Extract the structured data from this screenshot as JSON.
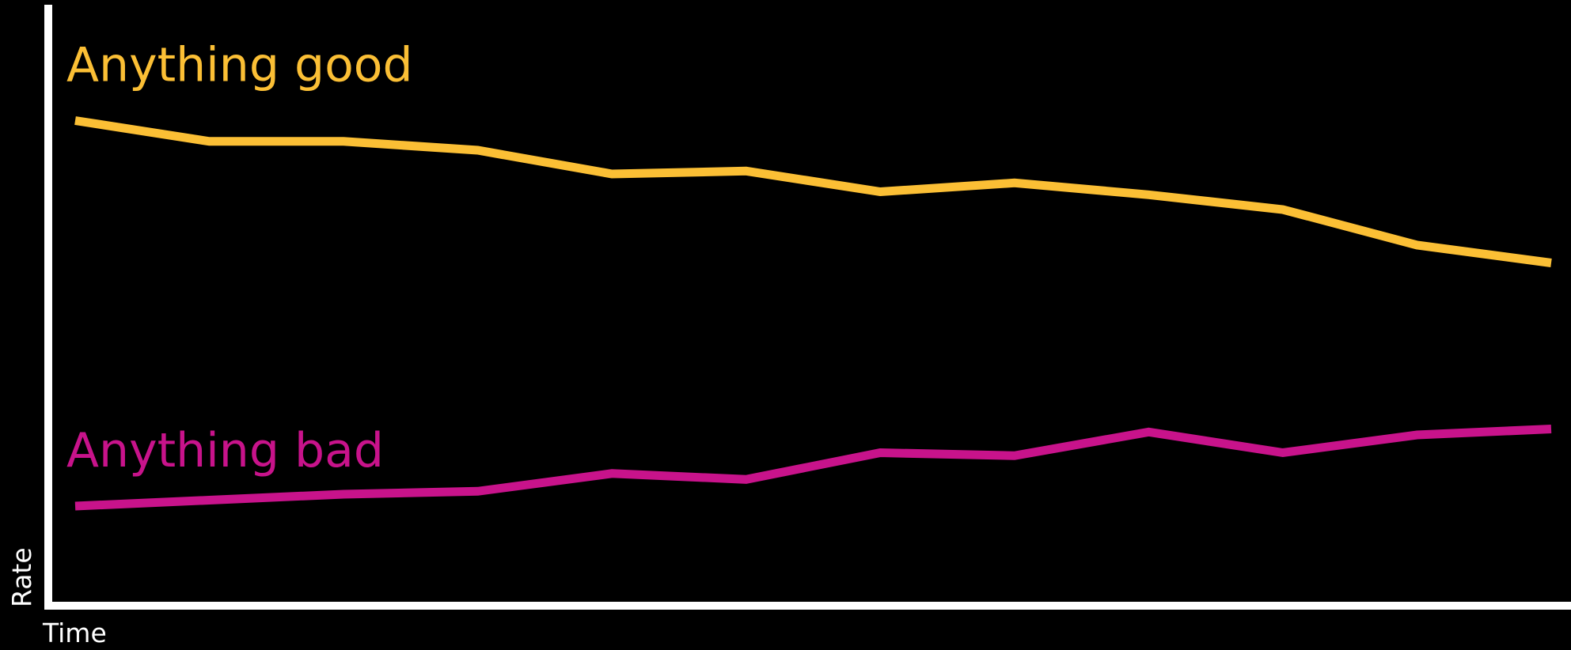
{
  "chart_data": {
    "type": "line",
    "title": "",
    "xlabel": "Time",
    "ylabel": "Rate",
    "ylim": [
      0,
      100
    ],
    "x": [
      1,
      2,
      3,
      4,
      5,
      6,
      7,
      8,
      9,
      10,
      11,
      12
    ],
    "grid": false,
    "legend": "inline labels",
    "series": [
      {
        "name": "Anything good",
        "color": "#fbbf35",
        "values": [
          81,
          77.5,
          77.5,
          76,
          72,
          72.5,
          69,
          70.5,
          68.5,
          66,
          60,
          57
        ]
      },
      {
        "name": "Anything bad",
        "color": "#c8138b",
        "values": [
          16,
          17,
          18,
          18.5,
          21.5,
          20.5,
          25,
          24.5,
          28.5,
          25,
          28,
          29
        ]
      }
    ]
  }
}
